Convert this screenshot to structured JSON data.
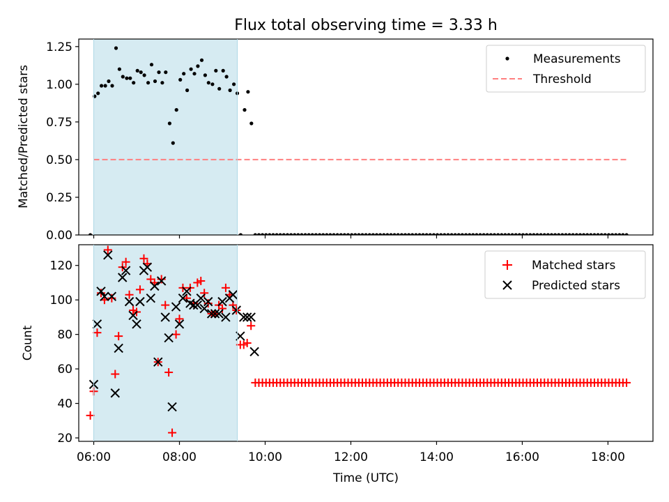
{
  "figure": {
    "title": "Flux total observing time = 3.33 h"
  },
  "chart_data": [
    {
      "type": "scatter",
      "panel": "top",
      "ylabel": "Matched/Predicted stars",
      "xlabel": "",
      "ylim": [
        0,
        1.3
      ],
      "xlim": [
        5.65,
        19.05
      ],
      "yticks": [
        0.0,
        0.25,
        0.5,
        0.75,
        1.0,
        1.25
      ],
      "ytick_labels": [
        "0.00",
        "0.25",
        "0.50",
        "0.75",
        "1.00",
        "1.25"
      ],
      "shaded_interval_hours": [
        6.0,
        9.35
      ],
      "shade_color": "#add8e6",
      "legend": {
        "placement": "top-right"
      },
      "series": [
        {
          "name": "Measurements",
          "marker": "dot",
          "color": "#000000",
          "x": [
            5.92,
            6.02,
            6.1,
            6.18,
            6.27,
            6.35,
            6.43,
            6.52,
            6.6,
            6.68,
            6.77,
            6.85,
            6.93,
            7.02,
            7.1,
            7.18,
            7.27,
            7.35,
            7.43,
            7.52,
            7.6,
            7.68,
            7.77,
            7.85,
            7.93,
            8.02,
            8.1,
            8.18,
            8.27,
            8.35,
            8.43,
            8.52,
            8.6,
            8.68,
            8.77,
            8.85,
            8.93,
            9.02,
            9.1,
            9.18,
            9.27,
            9.35,
            9.43,
            9.52,
            9.6,
            9.68
          ],
          "y": [
            0.0,
            0.92,
            0.94,
            0.99,
            0.99,
            1.02,
            0.99,
            1.24,
            1.1,
            1.05,
            1.04,
            1.04,
            1.01,
            1.09,
            1.08,
            1.06,
            1.01,
            1.13,
            1.02,
            1.08,
            1.01,
            1.08,
            0.74,
            0.61,
            0.83,
            1.03,
            1.07,
            0.96,
            1.1,
            1.07,
            1.12,
            1.16,
            1.06,
            1.01,
            1.0,
            1.09,
            0.97,
            1.09,
            1.05,
            0.96,
            1.0,
            0.94,
            0.0,
            0.83,
            0.95,
            0.74
          ]
        },
        {
          "name": "",
          "marker": "dot",
          "color": "#000000",
          "x_start": 9.77,
          "x_end": 18.45,
          "x_step": 0.0833,
          "y_constant": 0.0
        },
        {
          "name": "Threshold",
          "marker": "dashed-line",
          "color": "#ff7f7f",
          "x": [
            6.0,
            18.45
          ],
          "y": [
            0.5,
            0.5
          ]
        }
      ]
    },
    {
      "type": "scatter",
      "panel": "bottom",
      "ylabel": "Count",
      "xlabel": "Time (UTC)",
      "ylim": [
        18,
        132
      ],
      "xlim": [
        5.65,
        19.05
      ],
      "yticks": [
        20,
        40,
        60,
        80,
        100,
        120
      ],
      "ytick_labels": [
        "20",
        "40",
        "60",
        "80",
        "100",
        "120"
      ],
      "xticks": [
        6,
        8,
        10,
        12,
        14,
        16,
        18
      ],
      "xtick_labels": [
        "06:00",
        "08:00",
        "10:00",
        "12:00",
        "14:00",
        "16:00",
        "18:00"
      ],
      "shaded_interval_hours": [
        6.0,
        9.35
      ],
      "shade_color": "#add8e6",
      "legend": {
        "placement": "top-right"
      },
      "series": [
        {
          "name": "Matched stars",
          "marker": "plus",
          "color": "#ff0000",
          "x": [
            5.92,
            6.0,
            6.08,
            6.17,
            6.25,
            6.33,
            6.42,
            6.5,
            6.58,
            6.67,
            6.75,
            6.83,
            6.92,
            7.0,
            7.08,
            7.17,
            7.25,
            7.33,
            7.42,
            7.5,
            7.58,
            7.67,
            7.75,
            7.83,
            7.92,
            8.0,
            8.08,
            8.17,
            8.25,
            8.33,
            8.42,
            8.5,
            8.58,
            8.67,
            8.75,
            8.83,
            8.92,
            9.0,
            9.08,
            9.17,
            9.25,
            9.33,
            9.42,
            9.5,
            9.58,
            9.67
          ],
          "y": [
            33,
            47,
            81,
            104,
            100,
            129,
            101,
            57,
            79,
            119,
            122,
            103,
            94,
            93,
            106,
            124,
            121,
            112,
            110,
            64,
            112,
            97,
            58,
            23,
            80,
            89,
            107,
            101,
            107,
            98,
            110,
            111,
            104,
            98,
            92,
            92,
            97,
            95,
            107,
            103,
            97,
            94,
            74,
            74,
            75,
            85
          ]
        },
        {
          "name": "",
          "marker": "plus",
          "color": "#ff0000",
          "x_start": 9.77,
          "x_end": 18.45,
          "x_step": 0.0833,
          "y_constant": 52
        },
        {
          "name": "Predicted stars",
          "marker": "x",
          "color": "#000000",
          "x": [
            6.0,
            6.08,
            6.17,
            6.25,
            6.33,
            6.42,
            6.5,
            6.58,
            6.67,
            6.75,
            6.83,
            6.92,
            7.0,
            7.08,
            7.17,
            7.25,
            7.33,
            7.42,
            7.5,
            7.58,
            7.67,
            7.75,
            7.83,
            7.92,
            8.0,
            8.08,
            8.17,
            8.25,
            8.33,
            8.42,
            8.5,
            8.58,
            8.67,
            8.75,
            8.83,
            8.92,
            9.0,
            9.08,
            9.17,
            9.25,
            9.33,
            9.42,
            9.5,
            9.58,
            9.67,
            9.75
          ],
          "y": [
            51,
            86,
            105,
            102,
            126,
            102,
            46,
            72,
            113,
            117,
            99,
            91,
            86,
            99,
            117,
            119,
            101,
            108,
            64,
            111,
            90,
            78,
            38,
            96,
            86,
            101,
            105,
            98,
            97,
            97,
            101,
            95,
            99,
            92,
            92,
            92,
            99,
            90,
            101,
            103,
            94,
            79,
            90,
            90,
            90,
            70
          ]
        }
      ]
    }
  ]
}
